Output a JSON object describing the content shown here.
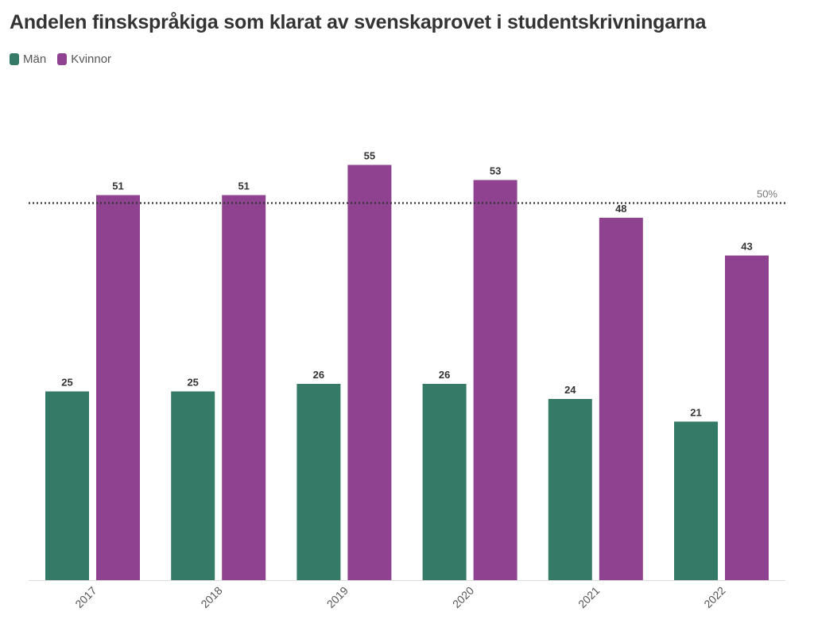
{
  "chart_data": {
    "type": "bar",
    "title": "Andelen finskspråkiga som klarat av svenskaprovet i studentskrivningarna",
    "categories": [
      "2017",
      "2018",
      "2019",
      "2020",
      "2021",
      "2022"
    ],
    "series": [
      {
        "name": "Män",
        "color": "#357A66",
        "values": [
          25,
          25,
          26,
          26,
          24,
          21
        ]
      },
      {
        "name": "Kvinnor",
        "color": "#8F4290",
        "values": [
          51,
          51,
          55,
          53,
          48,
          43
        ]
      }
    ],
    "reference_line": {
      "value": 50,
      "label": "50%",
      "style": "dotted"
    },
    "ylim": [
      0,
      55
    ],
    "xlabel": "",
    "ylabel": "",
    "grid": false,
    "legend_position": "top-left"
  }
}
